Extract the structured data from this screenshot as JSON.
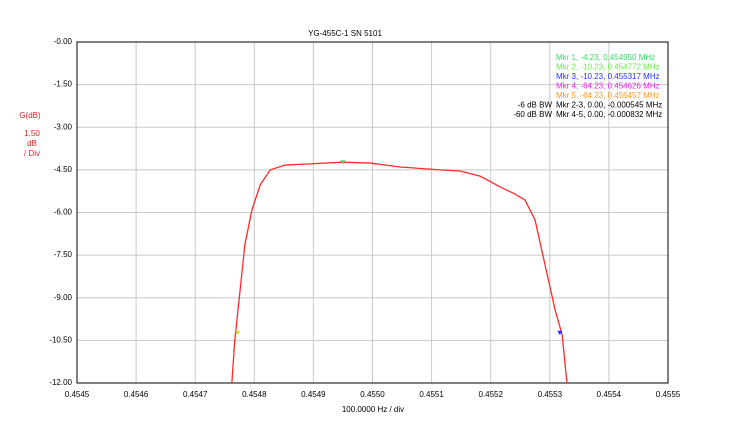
{
  "chart_data": {
    "type": "line",
    "title": "YG-455C-1 SN 5101",
    "x_label": "100.0000 Hz / div",
    "y_label": [
      "G(dB)",
      "1.50",
      "dB",
      "/ Div"
    ],
    "xlim": [
      0.4545,
      0.4555
    ],
    "xticks": [
      0.4545,
      0.4546,
      0.4547,
      0.4548,
      0.4549,
      {
        "value": 0.455,
        "label": "0.4550"
      },
      0.4551,
      0.4552,
      0.4553,
      0.4554,
      0.4555
    ],
    "ylim": [
      -12,
      0
    ],
    "yticks": [
      {
        "value": 0,
        "label": "-0.00"
      },
      {
        "value": -1.5,
        "label": "-1.50"
      },
      {
        "value": -3,
        "label": "-3.00"
      },
      {
        "value": -4.5,
        "label": "-4.50"
      },
      {
        "value": -6,
        "label": "-6.00"
      },
      {
        "value": -7.5,
        "label": "-7.50"
      },
      {
        "value": -9,
        "label": "-9.00"
      },
      {
        "value": -10.5,
        "label": "-10.50"
      },
      {
        "value": -12,
        "label": "-12.00"
      }
    ],
    "grid": true,
    "series": [
      {
        "color": "#ff2a2a",
        "x": [
          0.454762,
          0.454767,
          0.454776,
          0.454784,
          0.454796,
          0.45481,
          0.454827,
          0.454852,
          0.454894,
          0.45495,
          0.454996,
          0.455047,
          0.455114,
          0.455148,
          0.455182,
          0.455216,
          0.455241,
          0.455258,
          0.455275,
          0.455292,
          0.455309,
          0.455321,
          0.455329
        ],
        "values": [
          -12,
          -10.49,
          -8.73,
          -7.14,
          -5.91,
          -5.03,
          -4.5,
          -4.33,
          -4.29,
          -4.23,
          -4.26,
          -4.4,
          -4.5,
          -4.54,
          -4.72,
          -5.1,
          -5.35,
          -5.56,
          -6.26,
          -7.85,
          -9.43,
          -10.31,
          -12
        ]
      }
    ],
    "markers": [
      {
        "x": 0.45495,
        "y": -4.23,
        "color": "#33dd66"
      },
      {
        "x": 0.454772,
        "y": -10.23,
        "color": "#e0e020"
      },
      {
        "x": 0.455317,
        "y": -10.23,
        "color": "#2233ff"
      }
    ],
    "marker_labels": [
      {
        "text": "Mkr 1, -4.23, 0.454950 MHz",
        "color": "#33dd66"
      },
      {
        "text": "Mkr 2, -10.23, 0.454772 MHz",
        "color": "#66ee44"
      },
      {
        "text": "Mkr 3, -10.23, 0.455317 MHz",
        "color": "#2233ff"
      },
      {
        "text": "Mkr 4, -64.23, 0.454626 MHz",
        "color": "#ee22ee"
      },
      {
        "text": "Mkr 5, -64.23, 0.455457 MHz",
        "color": "#ff9922"
      }
    ],
    "bandwidths": [
      {
        "name": "-6 dB BW",
        "text": "Mkr 2-3, 0.00, -0.000545 MHz"
      },
      {
        "name": "-60 dB BW",
        "text": "Mkr 4-5, 0.00, -0.000832 MHz"
      }
    ]
  }
}
